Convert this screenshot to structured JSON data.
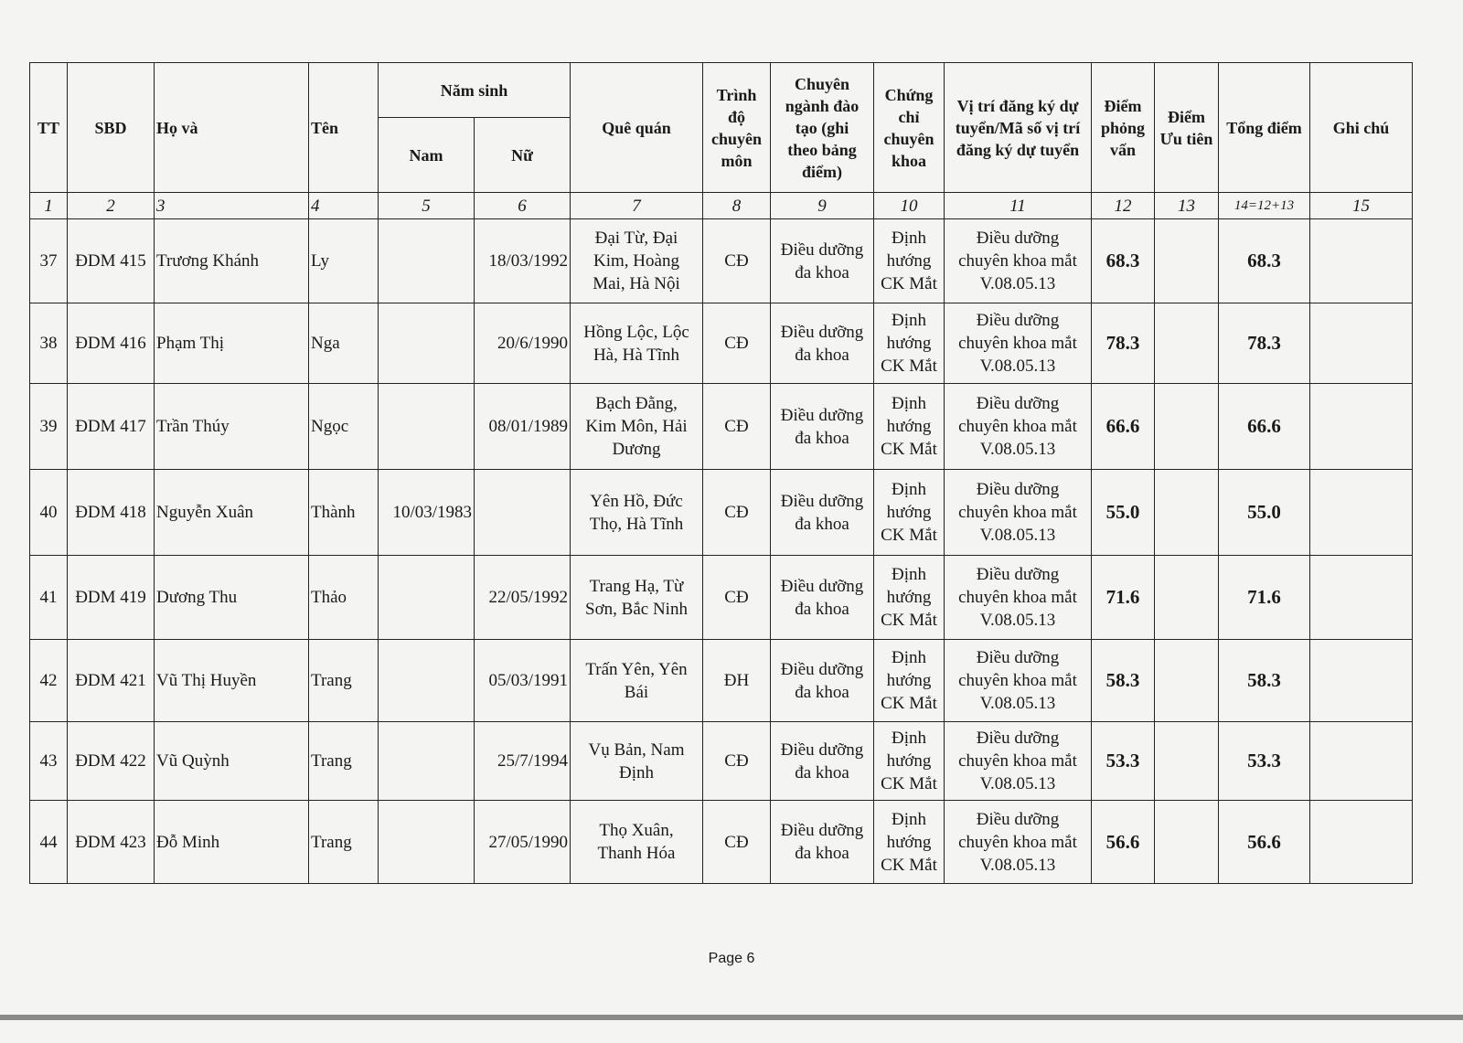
{
  "headers": {
    "tt": "TT",
    "sbd": "SBD",
    "ho_va": "Họ và",
    "ten": "Tên",
    "nam_sinh": "Năm sinh",
    "nam": "Nam",
    "nu": "Nữ",
    "que_quan": "Quê quán",
    "trinh_do": "Trình\nđộ\nchuyên\nmôn",
    "chuyen_nganh": "Chuyên\nngành đào\ntạo (ghi\ntheo bảng\nđiểm)",
    "chung_chi": "Chứng\nchỉ\nchuyên\nkhoa",
    "vi_tri": "Vị trí đăng ký dự\ntuyển/Mã số vị trí\nđăng ký dự tuyển",
    "diem_pv": "Điểm\nphỏng\nvấn",
    "diem_ut": "Điểm\nƯu tiên",
    "tong_diem": "Tổng điểm",
    "ghi_chu": "Ghi chú"
  },
  "index_row": [
    "1",
    "2",
    "3",
    "4",
    "5",
    "6",
    "7",
    "8",
    "9",
    "10",
    "11",
    "12",
    "13",
    "14=12+13",
    "15"
  ],
  "rows": [
    {
      "tt": "37",
      "sbd": "ĐDM 415",
      "ho": "Trương Khánh",
      "ten": "Ly",
      "nam": "",
      "nu": "18/03/1992",
      "que": "Đại Từ, Đại\nKim, Hoàng\nMai, Hà Nội",
      "td": "CĐ",
      "cn": "Điều dưỡng\nđa khoa",
      "cc": "Định\nhướng\nCK Mắt",
      "vt": "Điều dưỡng\nchuyên khoa mắt\nV.08.05.13",
      "pv": "68.3",
      "ut": "",
      "tong": "68.3",
      "gc": ""
    },
    {
      "tt": "38",
      "sbd": "ĐDM 416",
      "ho": "Phạm Thị",
      "ten": "Nga",
      "nam": "",
      "nu": "20/6/1990",
      "que": "Hồng Lộc, Lộc\nHà, Hà Tĩnh",
      "td": "CĐ",
      "cn": "Điều dưỡng\nđa khoa",
      "cc": "Định\nhướng\nCK Mắt",
      "vt": "Điều dưỡng\nchuyên khoa mắt\nV.08.05.13",
      "pv": "78.3",
      "ut": "",
      "tong": "78.3",
      "gc": ""
    },
    {
      "tt": "39",
      "sbd": "ĐDM 417",
      "ho": "Trần Thúy",
      "ten": "Ngọc",
      "nam": "",
      "nu": "08/01/1989",
      "que": "Bạch Đằng,\nKim Môn, Hải\nDương",
      "td": "CĐ",
      "cn": "Điều dưỡng\nđa khoa",
      "cc": "Định\nhướng\nCK Mắt",
      "vt": "Điều dưỡng\nchuyên khoa mắt\nV.08.05.13",
      "pv": "66.6",
      "ut": "",
      "tong": "66.6",
      "gc": ""
    },
    {
      "tt": "40",
      "sbd": "ĐDM 418",
      "ho": "Nguyễn Xuân",
      "ten": "Thành",
      "nam": "10/03/1983",
      "nu": "",
      "que": "Yên Hồ, Đức\nThọ, Hà Tĩnh",
      "td": "CĐ",
      "cn": "Điều dưỡng\nđa khoa",
      "cc": "Định\nhướng\nCK Mắt",
      "vt": "Điều dưỡng\nchuyên khoa mắt\nV.08.05.13",
      "pv": "55.0",
      "ut": "",
      "tong": "55.0",
      "gc": ""
    },
    {
      "tt": "41",
      "sbd": "ĐDM 419",
      "ho": "Dương Thu",
      "ten": "Thảo",
      "nam": "",
      "nu": "22/05/1992",
      "que": "Trang Hạ, Từ\nSơn, Bắc Ninh",
      "td": "CĐ",
      "cn": "Điều dưỡng\nđa khoa",
      "cc": "Định\nhướng\nCK Mắt",
      "vt": "Điều dưỡng\nchuyên khoa mắt\nV.08.05.13",
      "pv": "71.6",
      "ut": "",
      "tong": "71.6",
      "gc": ""
    },
    {
      "tt": "42",
      "sbd": "ĐDM 421",
      "ho": "Vũ Thị Huyền",
      "ten": "Trang",
      "nam": "",
      "nu": "05/03/1991",
      "que": "Trấn Yên, Yên\nBái",
      "td": "ĐH",
      "cn": "Điều dưỡng\nđa khoa",
      "cc": "Định\nhướng\nCK Mắt",
      "vt": "Điều dưỡng\nchuyên khoa mắt\nV.08.05.13",
      "pv": "58.3",
      "ut": "",
      "tong": "58.3",
      "gc": ""
    },
    {
      "tt": "43",
      "sbd": "ĐDM 422",
      "ho": "Vũ Quỳnh",
      "ten": "Trang",
      "nam": "",
      "nu": "25/7/1994",
      "que": "Vụ Bản, Nam\nĐịnh",
      "td": "CĐ",
      "cn": "Điều dưỡng\nđa khoa",
      "cc": "Định\nhướng\nCK Mắt",
      "vt": "Điều dưỡng\nchuyên khoa mắt\nV.08.05.13",
      "pv": "53.3",
      "ut": "",
      "tong": "53.3",
      "gc": ""
    },
    {
      "tt": "44",
      "sbd": "ĐDM 423",
      "ho": "Đỗ Minh",
      "ten": "Trang",
      "nam": "",
      "nu": "27/05/1990",
      "que": "Thọ Xuân,\nThanh Hóa",
      "td": "CĐ",
      "cn": "Điều dưỡng\nđa khoa",
      "cc": "Định\nhướng\nCK Mắt",
      "vt": "Điều dưỡng\nchuyên khoa mắt\nV.08.05.13",
      "pv": "56.6",
      "ut": "",
      "tong": "56.6",
      "gc": ""
    }
  ],
  "footer": {
    "page": "Page 6"
  }
}
